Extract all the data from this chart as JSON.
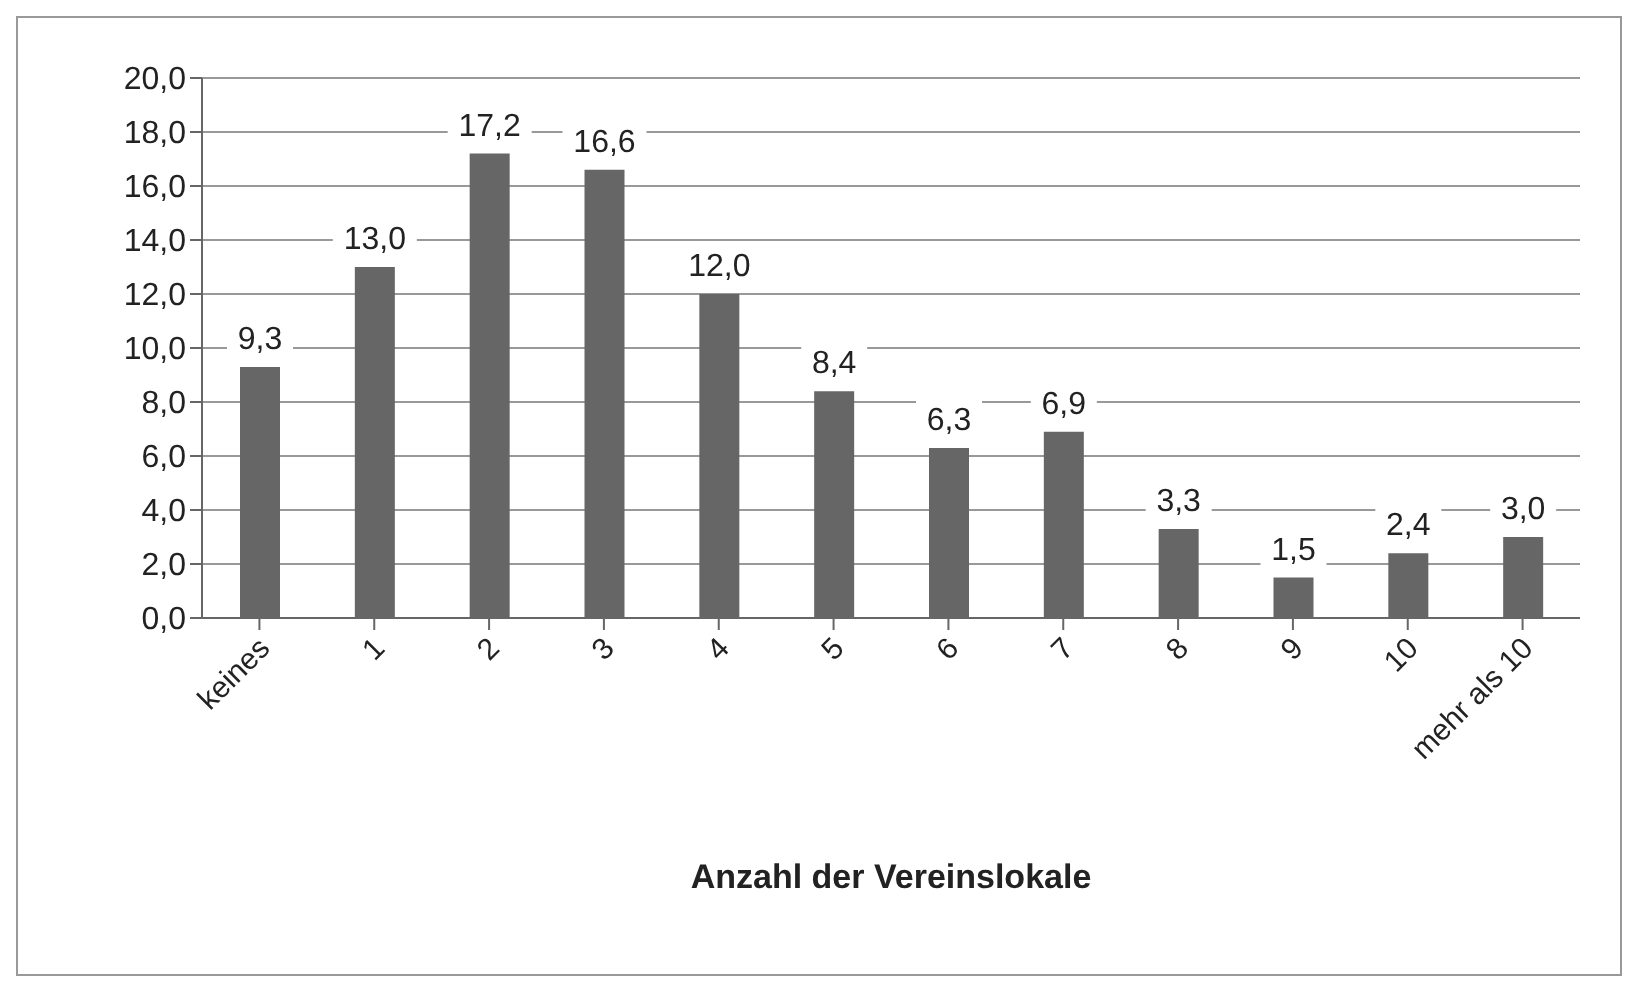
{
  "chart_data": {
    "type": "bar",
    "xlabel": "Anzahl der Vereinslokale",
    "categories": [
      "keines",
      "1",
      "2",
      "3",
      "4",
      "5",
      "6",
      "7",
      "8",
      "9",
      "10",
      "mehr als 10"
    ],
    "values": [
      9.3,
      13.0,
      17.2,
      16.6,
      12.0,
      8.4,
      6.3,
      6.9,
      3.3,
      1.5,
      2.4,
      3.0
    ],
    "value_labels": [
      "9,3",
      "13,0",
      "17,2",
      "16,6",
      "12,0",
      "8,4",
      "6,3",
      "6,9",
      "3,3",
      "1,5",
      "2,4",
      "3,0"
    ],
    "color": "#666666",
    "ylim": [
      0,
      20
    ],
    "yticks": [
      {
        "value": 0,
        "label": "0,0"
      },
      {
        "value": 2,
        "label": "2,0"
      },
      {
        "value": 4,
        "label": "4,0"
      },
      {
        "value": 6,
        "label": "6,0"
      },
      {
        "value": 8,
        "label": "8,0"
      },
      {
        "value": 10,
        "label": "10,0"
      },
      {
        "value": 12,
        "label": "12,0"
      },
      {
        "value": 14,
        "label": "14,0"
      },
      {
        "value": 16,
        "label": "16,0"
      },
      {
        "value": 18,
        "label": "18,0"
      },
      {
        "value": 20,
        "label": "20,0"
      }
    ],
    "grid": "y"
  }
}
